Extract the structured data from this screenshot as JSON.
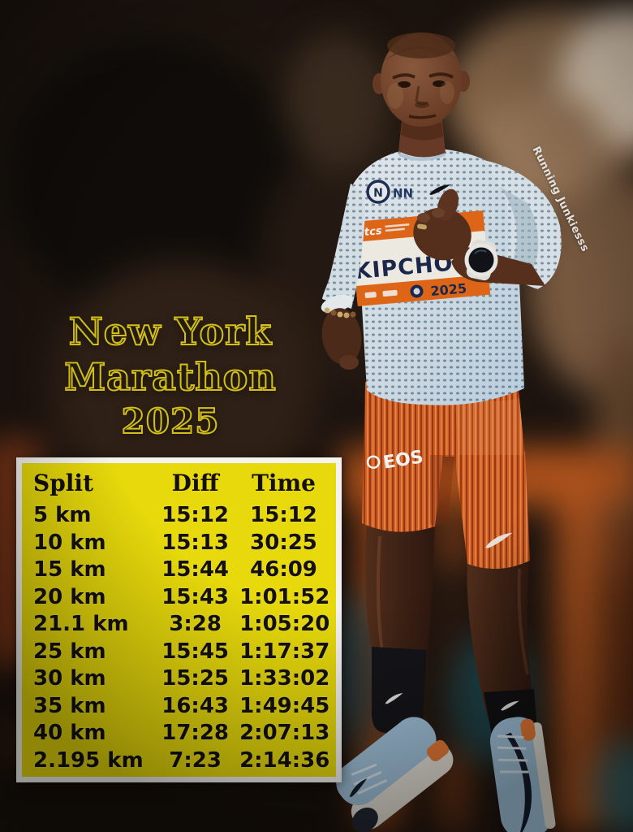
{
  "title": {
    "line1": "New York",
    "line2": "Marathon",
    "line3": "2025"
  },
  "watermark": "Running Junkiesss",
  "runner": {
    "bib_name": "KIPCHOGE",
    "bib_sponsor": "tcs",
    "bib_year": "2025",
    "jersey_logo": "NN",
    "shorts_logo": "EOS"
  },
  "splits_table": {
    "headers": [
      "Split",
      "Diff",
      "Time"
    ],
    "rows": [
      [
        "5 km",
        "15:12",
        "15:12"
      ],
      [
        "10 km",
        "15:13",
        "30:25"
      ],
      [
        "15 km",
        "15:44",
        "46:09"
      ],
      [
        "20 km",
        "15:43",
        "1:01:52"
      ],
      [
        "21.1 km",
        "3:28",
        "1:05:20"
      ],
      [
        "25 km",
        "15:45",
        "1:17:37"
      ],
      [
        "30 km",
        "15:25",
        "1:33:02"
      ],
      [
        "35 km",
        "16:43",
        "1:49:45"
      ],
      [
        "40 km",
        "17:28",
        "2:07:13"
      ],
      [
        "2.195 km",
        "7:23",
        "2:14:36"
      ]
    ]
  },
  "chart_data": {
    "type": "table",
    "title": "New York Marathon 2025",
    "columns": [
      "Split",
      "Diff",
      "Time"
    ],
    "rows": [
      {
        "split": "5 km",
        "diff": "15:12",
        "time": "15:12"
      },
      {
        "split": "10 km",
        "diff": "15:13",
        "time": "30:25"
      },
      {
        "split": "15 km",
        "diff": "15:44",
        "time": "46:09"
      },
      {
        "split": "20 km",
        "diff": "15:43",
        "time": "1:01:52"
      },
      {
        "split": "21.1 km",
        "diff": "3:28",
        "time": "1:05:20"
      },
      {
        "split": "25 km",
        "diff": "15:45",
        "time": "1:17:37"
      },
      {
        "split": "30 km",
        "diff": "15:25",
        "time": "1:33:02"
      },
      {
        "split": "35 km",
        "diff": "16:43",
        "time": "1:49:45"
      },
      {
        "split": "40 km",
        "diff": "17:28",
        "time": "2:07:13"
      },
      {
        "split": "2.195 km",
        "diff": "7:23",
        "time": "2:14:36"
      }
    ]
  },
  "colors": {
    "table_bg": "#f2e40c",
    "table_border": "#ffffff",
    "table_text": "#15110b",
    "title_fill": "#241d10",
    "title_outline": "#dcc91e",
    "bib_orange": "#e76a1a",
    "bib_text": "#1b2750",
    "tights_orange": "#d96428",
    "shoe_blue": "#a8cde7",
    "watermark": "#ffffff"
  }
}
